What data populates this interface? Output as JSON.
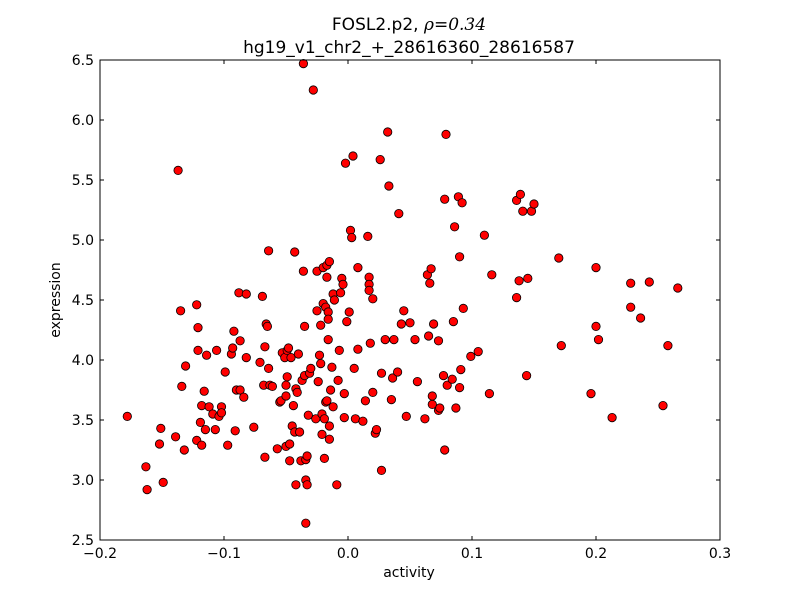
{
  "chart_data": {
    "type": "scatter",
    "title_line1_prefix": "FOSL2.p2, ",
    "title_rho_symbol": "ρ",
    "title_rho_value": "=0.34",
    "title_line2": "hg19_v1_chr2_+_28616360_28616587",
    "xlabel": "activity",
    "ylabel": "expression",
    "xlim": [
      -0.2,
      0.3
    ],
    "ylim": [
      2.5,
      6.5
    ],
    "xticks": [
      -0.2,
      -0.1,
      0.0,
      0.1,
      0.2,
      0.3
    ],
    "xtick_labels": [
      "−0.2",
      "−0.1",
      "0.0",
      "0.1",
      "0.2",
      "0.3"
    ],
    "yticks": [
      2.5,
      3.0,
      3.5,
      4.0,
      4.5,
      5.0,
      5.5,
      6.0,
      6.5
    ],
    "ytick_labels": [
      "2.5",
      "3.0",
      "3.5",
      "4.0",
      "4.5",
      "5.0",
      "5.5",
      "6.0",
      "6.5"
    ],
    "grid": false,
    "marker_color": "#ff0000",
    "marker_edge_color": "#000000",
    "points": [
      [
        -0.178,
        3.53
      ],
      [
        -0.163,
        3.11
      ],
      [
        -0.162,
        2.92
      ],
      [
        -0.152,
        3.3
      ],
      [
        -0.151,
        3.43
      ],
      [
        -0.149,
        2.98
      ],
      [
        -0.139,
        3.36
      ],
      [
        -0.137,
        5.58
      ],
      [
        -0.135,
        4.41
      ],
      [
        -0.134,
        3.78
      ],
      [
        -0.132,
        3.25
      ],
      [
        -0.131,
        3.95
      ],
      [
        -0.122,
        3.33
      ],
      [
        -0.122,
        4.46
      ],
      [
        -0.121,
        4.27
      ],
      [
        -0.121,
        4.08
      ],
      [
        -0.119,
        3.48
      ],
      [
        -0.118,
        3.62
      ],
      [
        -0.118,
        3.29
      ],
      [
        -0.116,
        3.74
      ],
      [
        -0.115,
        3.42
      ],
      [
        -0.114,
        4.04
      ],
      [
        -0.112,
        3.61
      ],
      [
        -0.109,
        3.55
      ],
      [
        -0.107,
        3.42
      ],
      [
        -0.106,
        4.08
      ],
      [
        -0.104,
        3.53
      ],
      [
        -0.102,
        3.61
      ],
      [
        -0.102,
        3.56
      ],
      [
        -0.099,
        3.9
      ],
      [
        -0.097,
        3.29
      ],
      [
        -0.094,
        4.05
      ],
      [
        -0.093,
        4.1
      ],
      [
        -0.092,
        4.24
      ],
      [
        -0.091,
        3.41
      ],
      [
        -0.09,
        3.75
      ],
      [
        -0.088,
        4.56
      ],
      [
        -0.087,
        3.75
      ],
      [
        -0.087,
        4.16
      ],
      [
        -0.084,
        3.69
      ],
      [
        -0.082,
        4.55
      ],
      [
        -0.082,
        4.02
      ],
      [
        -0.076,
        3.44
      ],
      [
        -0.071,
        3.98
      ],
      [
        -0.069,
        4.53
      ],
      [
        -0.068,
        3.79
      ],
      [
        -0.067,
        3.19
      ],
      [
        -0.067,
        4.11
      ],
      [
        -0.066,
        4.3
      ],
      [
        -0.065,
        4.28
      ],
      [
        -0.064,
        4.91
      ],
      [
        -0.064,
        3.93
      ],
      [
        -0.063,
        3.79
      ],
      [
        -0.061,
        3.78
      ],
      [
        -0.057,
        3.26
      ],
      [
        -0.055,
        3.65
      ],
      [
        -0.054,
        3.66
      ],
      [
        -0.053,
        4.06
      ],
      [
        -0.051,
        4.02
      ],
      [
        -0.05,
        3.79
      ],
      [
        -0.05,
        3.7
      ],
      [
        -0.05,
        3.28
      ],
      [
        -0.049,
        3.86
      ],
      [
        -0.049,
        4.08
      ],
      [
        -0.048,
        4.1
      ],
      [
        -0.047,
        3.16
      ],
      [
        -0.047,
        3.3
      ],
      [
        -0.046,
        4.02
      ],
      [
        -0.045,
        3.45
      ],
      [
        -0.044,
        3.62
      ],
      [
        -0.043,
        4.9
      ],
      [
        -0.043,
        3.4
      ],
      [
        -0.042,
        3.76
      ],
      [
        -0.042,
        2.96
      ],
      [
        -0.041,
        3.73
      ],
      [
        -0.04,
        4.05
      ],
      [
        -0.039,
        3.4
      ],
      [
        -0.038,
        3.16
      ],
      [
        -0.037,
        3.83
      ],
      [
        -0.036,
        4.74
      ],
      [
        -0.036,
        6.47
      ],
      [
        -0.035,
        4.28
      ],
      [
        -0.035,
        3.87
      ],
      [
        -0.034,
        2.64
      ],
      [
        -0.034,
        3.17
      ],
      [
        -0.034,
        3.0
      ],
      [
        -0.033,
        3.2
      ],
      [
        -0.033,
        2.96
      ],
      [
        -0.032,
        3.54
      ],
      [
        -0.031,
        3.89
      ],
      [
        -0.03,
        3.93
      ],
      [
        -0.028,
        6.25
      ],
      [
        -0.026,
        3.51
      ],
      [
        -0.025,
        4.74
      ],
      [
        -0.025,
        4.41
      ],
      [
        -0.024,
        3.82
      ],
      [
        -0.023,
        4.04
      ],
      [
        -0.022,
        3.97
      ],
      [
        -0.022,
        4.29
      ],
      [
        -0.021,
        3.55
      ],
      [
        -0.021,
        3.38
      ],
      [
        -0.02,
        4.77
      ],
      [
        -0.02,
        4.47
      ],
      [
        -0.019,
        3.51
      ],
      [
        -0.019,
        3.18
      ],
      [
        -0.018,
        4.44
      ],
      [
        -0.018,
        3.65
      ],
      [
        -0.017,
        3.66
      ],
      [
        -0.017,
        4.79
      ],
      [
        -0.017,
        4.69
      ],
      [
        -0.016,
        4.4
      ],
      [
        -0.016,
        4.34
      ],
      [
        -0.016,
        4.17
      ],
      [
        -0.015,
        4.82
      ],
      [
        -0.015,
        3.34
      ],
      [
        -0.015,
        3.45
      ],
      [
        -0.014,
        3.75
      ],
      [
        -0.013,
        3.94
      ],
      [
        -0.012,
        3.61
      ],
      [
        -0.012,
        4.55
      ],
      [
        -0.011,
        4.5
      ],
      [
        -0.009,
        2.96
      ],
      [
        -0.008,
        3.83
      ],
      [
        -0.007,
        4.08
      ],
      [
        -0.006,
        4.56
      ],
      [
        -0.005,
        4.68
      ],
      [
        -0.004,
        4.63
      ],
      [
        -0.003,
        3.52
      ],
      [
        -0.003,
        3.72
      ],
      [
        -0.002,
        5.64
      ],
      [
        -0.001,
        4.32
      ],
      [
        0.001,
        4.4
      ],
      [
        0.002,
        5.08
      ],
      [
        0.003,
        5.02
      ],
      [
        0.004,
        5.7
      ],
      [
        0.005,
        3.93
      ],
      [
        0.006,
        3.51
      ],
      [
        0.008,
        4.09
      ],
      [
        0.008,
        4.77
      ],
      [
        0.012,
        3.49
      ],
      [
        0.014,
        3.66
      ],
      [
        0.016,
        5.03
      ],
      [
        0.017,
        4.69
      ],
      [
        0.017,
        4.63
      ],
      [
        0.017,
        4.58
      ],
      [
        0.018,
        4.14
      ],
      [
        0.02,
        4.51
      ],
      [
        0.02,
        3.73
      ],
      [
        0.022,
        3.39
      ],
      [
        0.023,
        3.42
      ],
      [
        0.026,
        5.67
      ],
      [
        0.027,
        3.89
      ],
      [
        0.027,
        3.08
      ],
      [
        0.03,
        4.17
      ],
      [
        0.032,
        5.9
      ],
      [
        0.033,
        5.45
      ],
      [
        0.035,
        3.67
      ],
      [
        0.036,
        3.85
      ],
      [
        0.037,
        4.17
      ],
      [
        0.04,
        3.9
      ],
      [
        0.041,
        5.22
      ],
      [
        0.043,
        4.3
      ],
      [
        0.045,
        4.41
      ],
      [
        0.047,
        3.53
      ],
      [
        0.05,
        4.31
      ],
      [
        0.054,
        4.17
      ],
      [
        0.056,
        3.82
      ],
      [
        0.062,
        3.51
      ],
      [
        0.064,
        4.71
      ],
      [
        0.065,
        4.2
      ],
      [
        0.066,
        4.64
      ],
      [
        0.067,
        4.76
      ],
      [
        0.068,
        3.63
      ],
      [
        0.068,
        3.7
      ],
      [
        0.069,
        4.3
      ],
      [
        0.073,
        4.16
      ],
      [
        0.073,
        3.58
      ],
      [
        0.074,
        3.6
      ],
      [
        0.077,
        3.87
      ],
      [
        0.078,
        5.34
      ],
      [
        0.078,
        3.25
      ],
      [
        0.079,
        5.88
      ],
      [
        0.08,
        3.79
      ],
      [
        0.084,
        3.84
      ],
      [
        0.085,
        4.32
      ],
      [
        0.086,
        5.11
      ],
      [
        0.087,
        3.6
      ],
      [
        0.089,
        5.36
      ],
      [
        0.09,
        4.86
      ],
      [
        0.09,
        3.77
      ],
      [
        0.091,
        3.92
      ],
      [
        0.092,
        5.31
      ],
      [
        0.093,
        4.43
      ],
      [
        0.099,
        4.03
      ],
      [
        0.105,
        4.07
      ],
      [
        0.11,
        5.04
      ],
      [
        0.114,
        3.72
      ],
      [
        0.116,
        4.71
      ],
      [
        0.136,
        4.52
      ],
      [
        0.136,
        5.33
      ],
      [
        0.138,
        4.66
      ],
      [
        0.139,
        5.38
      ],
      [
        0.141,
        5.24
      ],
      [
        0.144,
        3.87
      ],
      [
        0.145,
        4.68
      ],
      [
        0.148,
        5.24
      ],
      [
        0.15,
        5.3
      ],
      [
        0.17,
        4.85
      ],
      [
        0.172,
        4.12
      ],
      [
        0.196,
        3.72
      ],
      [
        0.2,
        4.28
      ],
      [
        0.2,
        4.77
      ],
      [
        0.202,
        4.17
      ],
      [
        0.213,
        3.52
      ],
      [
        0.228,
        4.64
      ],
      [
        0.228,
        4.44
      ],
      [
        0.236,
        4.35
      ],
      [
        0.243,
        4.65
      ],
      [
        0.254,
        3.62
      ],
      [
        0.258,
        4.12
      ],
      [
        0.266,
        4.6
      ]
    ]
  }
}
